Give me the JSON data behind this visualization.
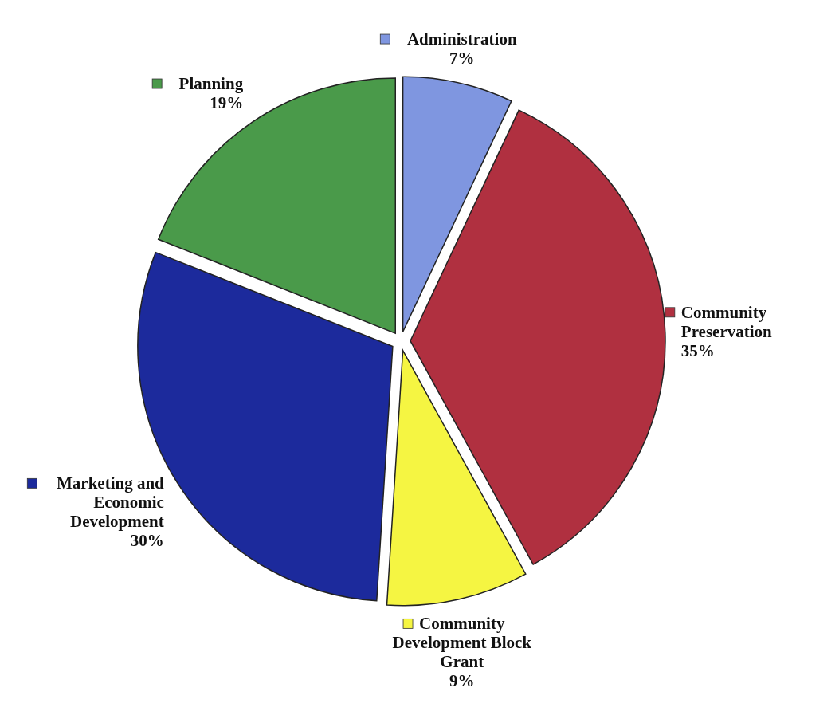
{
  "chart_data": {
    "type": "pie",
    "categories": [
      "Administration",
      "Community Preservation",
      "Community Development Block Grant",
      "Marketing and Economic Development",
      "Planning"
    ],
    "values": [
      7,
      35,
      9,
      30,
      19
    ],
    "value_labels": [
      "7%",
      "35%",
      "9%",
      "30%",
      "19%"
    ],
    "legend": "right",
    "colors": [
      "#7f96e0",
      "#b03040",
      "#f5f542",
      "#1c2a9c",
      "#4a9a4a"
    ]
  }
}
